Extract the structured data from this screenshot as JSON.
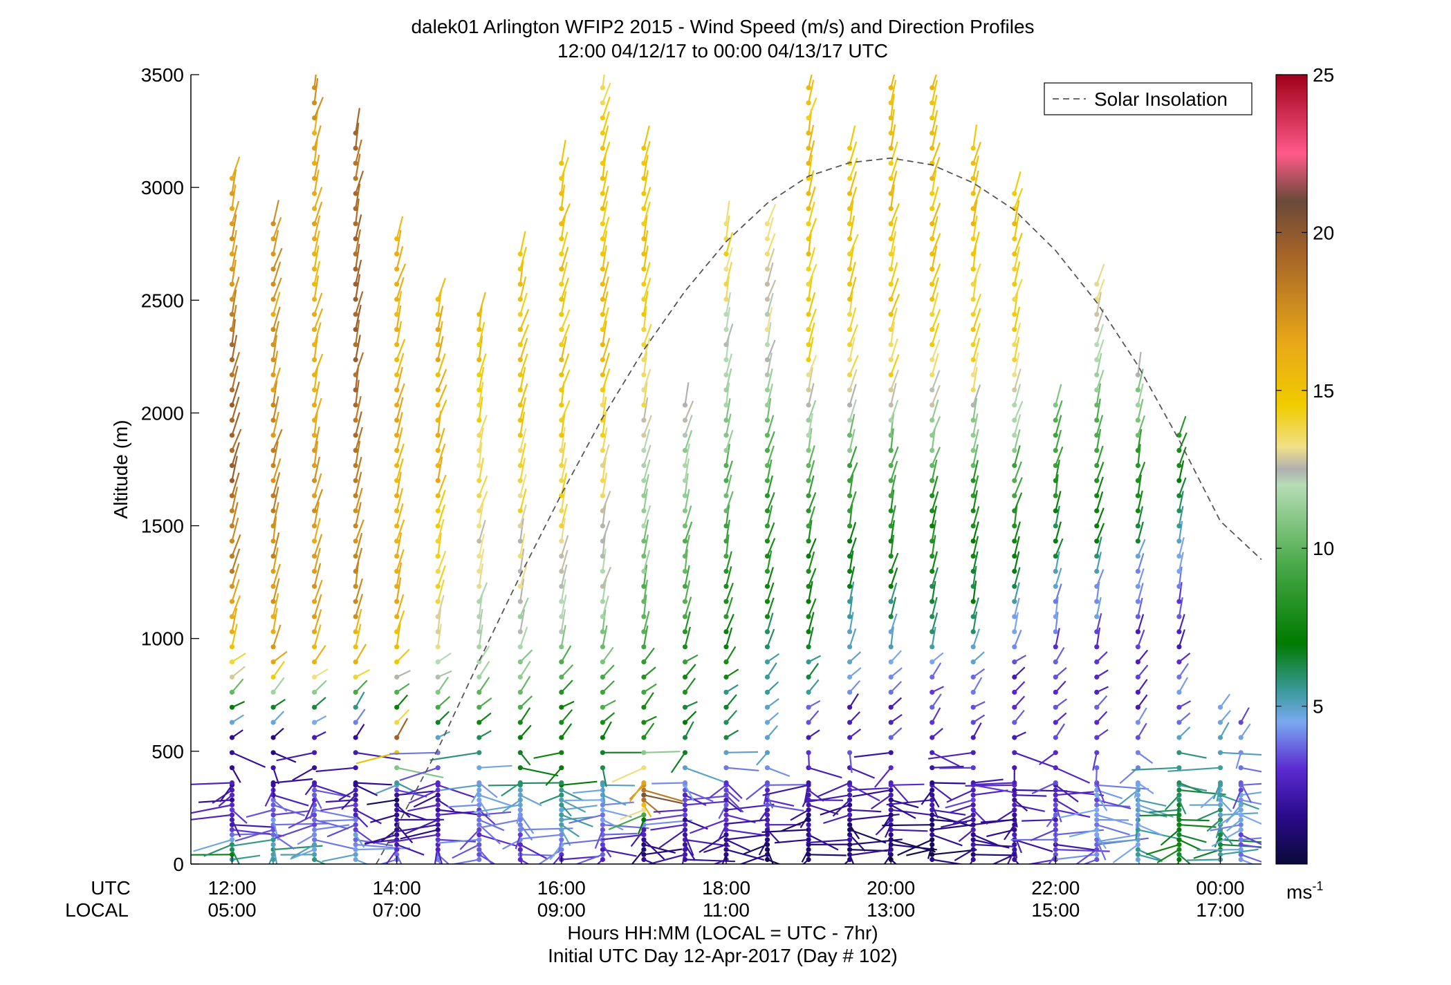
{
  "chart_data": {
    "type": "wind_barb_profile",
    "title": "dalek01 Arlington WFIP2 2015 - Wind Speed (m/s) and Direction Profiles",
    "subtitle": "12:00 04/12/17 to 00:00 04/13/17  UTC",
    "ylabel": "Altitude (m)",
    "xlabel": "Hours HH:MM  (LOCAL = UTC - 7hr)",
    "xlabel2": "Initial UTC Day 12-Apr-2017 (Day # 102)",
    "utc_label": "UTC",
    "local_label": "LOCAL",
    "x_ticks_utc": [
      "12:00",
      "14:00",
      "16:00",
      "18:00",
      "20:00",
      "22:00",
      "00:00"
    ],
    "x_ticks_local": [
      "05:00",
      "07:00",
      "09:00",
      "11:00",
      "13:00",
      "15:00",
      "17:00"
    ],
    "x_tick_hours": [
      12,
      14,
      16,
      18,
      20,
      22,
      24
    ],
    "xlim_hours": [
      11.5,
      24.5
    ],
    "y_ticks": [
      0,
      500,
      1000,
      1500,
      2000,
      2500,
      3000,
      3500
    ],
    "ylim": [
      0,
      3500
    ],
    "legend": {
      "entries": [
        "Solar Insolation"
      ],
      "placement": "top-right"
    },
    "colorbar": {
      "ticks": [
        5,
        10,
        15,
        20,
        25
      ],
      "range": [
        0,
        25
      ],
      "unit_label": "ms",
      "unit_exponent": "-1",
      "stops": [
        {
          "v": 0,
          "c": "#0a0a3a"
        },
        {
          "v": 1.5,
          "c": "#2a0a8a"
        },
        {
          "v": 3,
          "c": "#5a2ad0"
        },
        {
          "v": 4.5,
          "c": "#7aa8f0"
        },
        {
          "v": 5.5,
          "c": "#3a9a9a"
        },
        {
          "v": 7,
          "c": "#007a00"
        },
        {
          "v": 9.5,
          "c": "#4aaa4a"
        },
        {
          "v": 12,
          "c": "#b6dcb6"
        },
        {
          "v": 12.5,
          "c": "#b0b0b0"
        },
        {
          "v": 13.2,
          "c": "#f0e08a"
        },
        {
          "v": 14.5,
          "c": "#f0cc00"
        },
        {
          "v": 16.5,
          "c": "#e8a818"
        },
        {
          "v": 19.5,
          "c": "#a0602a"
        },
        {
          "v": 21,
          "c": "#6a4a3a"
        },
        {
          "v": 22.5,
          "c": "#ff5a8a"
        },
        {
          "v": 25,
          "c": "#a0001a"
        }
      ]
    },
    "solar_insolation": {
      "style": "dashed",
      "color": "#555555",
      "x_hours": [
        13.75,
        14,
        14.5,
        15,
        15.5,
        16,
        16.5,
        17,
        17.5,
        18,
        18.5,
        19,
        19.5,
        20,
        20.5,
        21,
        21.5,
        22,
        22.5,
        23,
        23.5,
        24,
        24.5
      ],
      "y_altitude": [
        0,
        165,
        510,
        900,
        1280,
        1640,
        1980,
        2280,
        2540,
        2760,
        2930,
        3050,
        3110,
        3130,
        3100,
        3020,
        2900,
        2720,
        2490,
        2210,
        1880,
        1520,
        1350
      ]
    },
    "profiles": {
      "times_hours": [
        12,
        12.5,
        13,
        13.5,
        14,
        14.5,
        15,
        15.5,
        16,
        16.5,
        17,
        17.5,
        18,
        18.5,
        19,
        19.5,
        20,
        20.5,
        21,
        21.5,
        22,
        22.5,
        23,
        23.5,
        24,
        24.25
      ],
      "max_altitude_m": [
        3050,
        2900,
        3450,
        3250,
        2830,
        2560,
        2480,
        2760,
        3110,
        3460,
        3180,
        2050,
        2840,
        2840,
        3460,
        3190,
        3460,
        3460,
        3180,
        2980,
        2060,
        2620,
        2200,
        1920,
        700,
        690
      ],
      "barb_spacing_m": 67,
      "speed_anchors": [
        {
          "alt": [
            0,
            60,
            150,
            300,
            550,
            700,
            850,
            1100,
            1700,
            2200,
            2800,
            3500
          ],
          "t": [
            [
              6,
              7,
              3,
              2,
              1.5,
              7,
              14,
              17,
              19,
              19,
              17,
              15
            ],
            [
              6,
              6,
              4,
              3,
              1,
              7,
              16,
              17,
              18,
              17,
              17,
              16
            ],
            [
              5,
              5,
              4,
              3,
              1.5,
              7,
              15,
              17,
              17,
              16,
              16,
              17
            ],
            [
              5,
              4,
              4,
              2,
              1.5,
              6,
              15,
              17,
              18,
              19,
              19,
              19
            ],
            [
              4,
              3,
              2,
              1,
              20,
              7,
              14,
              16,
              16,
              16,
              16,
              16
            ],
            [
              4,
              3,
              2,
              2,
              5,
              9,
              12,
              13,
              16,
              16,
              16,
              16
            ],
            [
              4,
              4,
              3,
              4,
              6,
              9,
              12,
              12,
              14,
              15,
              15,
              15
            ],
            [
              3,
              3,
              4,
              5,
              7,
              9,
              11,
              12,
              14,
              15,
              15,
              15
            ],
            [
              3,
              4,
              5,
              6,
              7,
              8,
              10,
              12,
              14,
              15,
              15,
              15
            ],
            [
              3,
              3,
              4,
              5,
              7,
              9,
              10,
              12,
              13,
              15,
              15,
              14
            ],
            [
              2,
              1.5,
              2,
              20,
              8,
              8,
              9,
              10,
              12,
              14,
              15,
              15
            ],
            [
              1.5,
              2,
              2,
              3,
              7,
              7,
              8,
              9,
              11,
              13,
              15,
              15
            ],
            [
              1.5,
              1.5,
              2,
              3,
              6,
              6,
              7,
              8,
              10,
              12,
              14,
              15
            ],
            [
              1,
              1,
              2,
              3,
              5,
              5,
              6,
              7,
              9,
              12,
              14,
              15
            ],
            [
              1,
              1,
              1.5,
              2,
              3,
              4,
              6,
              7,
              9,
              14,
              15,
              15
            ],
            [
              1,
              1,
              1.5,
              2,
              3,
              3,
              4,
              6,
              9,
              14,
              15,
              15
            ],
            [
              1,
              1,
              1.5,
              2,
              3,
              3,
              4,
              6,
              9,
              14,
              15,
              15
            ],
            [
              1,
              1,
              1.5,
              2,
              3,
              3,
              4,
              6,
              9,
              14,
              15,
              15
            ],
            [
              1.5,
              1.5,
              2,
              3,
              3,
              3,
              4,
              6,
              9,
              14,
              15,
              15
            ],
            [
              2,
              2,
              2,
              2.5,
              3,
              3,
              3,
              5,
              9,
              14,
              15,
              15
            ],
            [
              3,
              3,
              3,
              3,
              3,
              3,
              3,
              4,
              8,
              12,
              14,
              15
            ],
            [
              4,
              4,
              4,
              4,
              3,
              3,
              3,
              4,
              8,
              12,
              14,
              15
            ],
            [
              5,
              5,
              5,
              5,
              4,
              3,
              3,
              3,
              8,
              12,
              14,
              15
            ],
            [
              6,
              7,
              7,
              6,
              5,
              4,
              3,
              3,
              7,
              12,
              14,
              15
            ],
            [
              6,
              6,
              6,
              5,
              5,
              4,
              3,
              3,
              7,
              12,
              14,
              15
            ],
            [
              4,
              4,
              4,
              4,
              4,
              4,
              4,
              4,
              4,
              4,
              4,
              4
            ]
          ]
        }
      ]
    }
  }
}
